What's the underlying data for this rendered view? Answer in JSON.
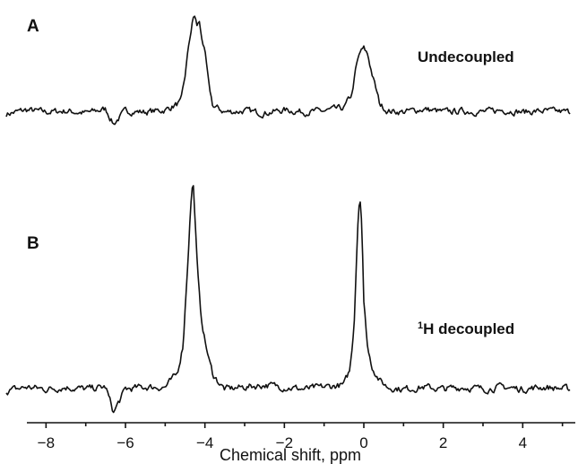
{
  "panel_a": {
    "letter": "A",
    "label": "Undecoupled"
  },
  "panel_b": {
    "letter": "B",
    "label_sup": "1",
    "label_text": "H decoupled"
  },
  "chart_data": [
    {
      "type": "line",
      "panel": "A",
      "xlabel": "Chemical shift, ppm",
      "xlim": [
        -9,
        5.2
      ],
      "ylim": [
        0,
        1.0
      ],
      "baseline_noise": 0.05,
      "x": [
        -9.0,
        -8.5,
        -8.0,
        -7.5,
        -7.0,
        -6.5,
        -6.3,
        -6.0,
        -5.5,
        -5.0,
        -4.6,
        -4.5,
        -4.4,
        -4.3,
        -4.25,
        -4.2,
        -4.15,
        -4.1,
        -4.0,
        -3.9,
        -3.8,
        -3.5,
        -3.0,
        -2.5,
        -2.0,
        -1.5,
        -1.0,
        -0.5,
        -0.3,
        -0.2,
        -0.1,
        0.0,
        0.1,
        0.2,
        0.4,
        0.6,
        1.0,
        1.5,
        2.0,
        2.5,
        3.0,
        3.5,
        4.0,
        4.5,
        5.2
      ],
      "y": [
        0.0,
        0.04,
        0.02,
        0.03,
        0.01,
        0.05,
        -0.1,
        0.03,
        0.02,
        0.04,
        0.12,
        0.38,
        0.72,
        0.96,
        1.0,
        0.88,
        0.95,
        0.82,
        0.62,
        0.28,
        0.08,
        0.02,
        0.03,
        0.01,
        0.04,
        0.02,
        0.03,
        0.06,
        0.2,
        0.46,
        0.62,
        0.66,
        0.6,
        0.42,
        0.1,
        0.03,
        0.02,
        0.05,
        0.02,
        0.03,
        0.02,
        0.04,
        0.02,
        0.03,
        0.02
      ],
      "annotations": [
        "A",
        "Undecoupled"
      ]
    },
    {
      "type": "line",
      "panel": "B",
      "xlabel": "Chemical shift, ppm",
      "xlim": [
        -9,
        5.2
      ],
      "ylim": [
        0,
        1.0
      ],
      "baseline_noise": 0.025,
      "x": [
        -9.0,
        -8.5,
        -8.0,
        -7.5,
        -7.0,
        -6.5,
        -6.3,
        -6.0,
        -5.5,
        -5.0,
        -4.7,
        -4.55,
        -4.45,
        -4.35,
        -4.3,
        -4.25,
        -4.2,
        -4.15,
        -4.1,
        -4.0,
        -3.9,
        -3.8,
        -3.6,
        -3.5,
        -3.0,
        -2.5,
        -2.0,
        -1.5,
        -1.0,
        -0.5,
        -0.35,
        -0.25,
        -0.15,
        -0.1,
        -0.05,
        0.0,
        0.1,
        0.2,
        0.4,
        0.6,
        1.0,
        1.5,
        2.0,
        2.5,
        3.0,
        3.5,
        4.0,
        4.5,
        5.2
      ],
      "y": [
        0.0,
        0.02,
        0.01,
        0.02,
        0.01,
        0.02,
        -0.1,
        0.01,
        0.02,
        0.02,
        0.08,
        0.22,
        0.55,
        0.9,
        1.0,
        0.82,
        0.62,
        0.47,
        0.36,
        0.24,
        0.15,
        0.08,
        0.03,
        0.01,
        0.02,
        0.03,
        0.02,
        0.01,
        0.02,
        0.03,
        0.1,
        0.3,
        0.8,
        0.94,
        0.8,
        0.42,
        0.2,
        0.12,
        0.05,
        0.02,
        0.01,
        0.02,
        0.01,
        0.02,
        0.01,
        0.02,
        0.01,
        0.02,
        0.01
      ],
      "annotations": [
        "B",
        "1H decoupled"
      ]
    }
  ],
  "axis": {
    "title": "Chemical shift, ppm",
    "ticks": [
      {
        "value": -8,
        "label": "−8"
      },
      {
        "value": -6,
        "label": "−6"
      },
      {
        "value": -4,
        "label": "−4"
      },
      {
        "value": -2,
        "label": "−2"
      },
      {
        "value": 0,
        "label": "0"
      },
      {
        "value": 2,
        "label": "2"
      },
      {
        "value": 4,
        "label": "4"
      }
    ]
  }
}
